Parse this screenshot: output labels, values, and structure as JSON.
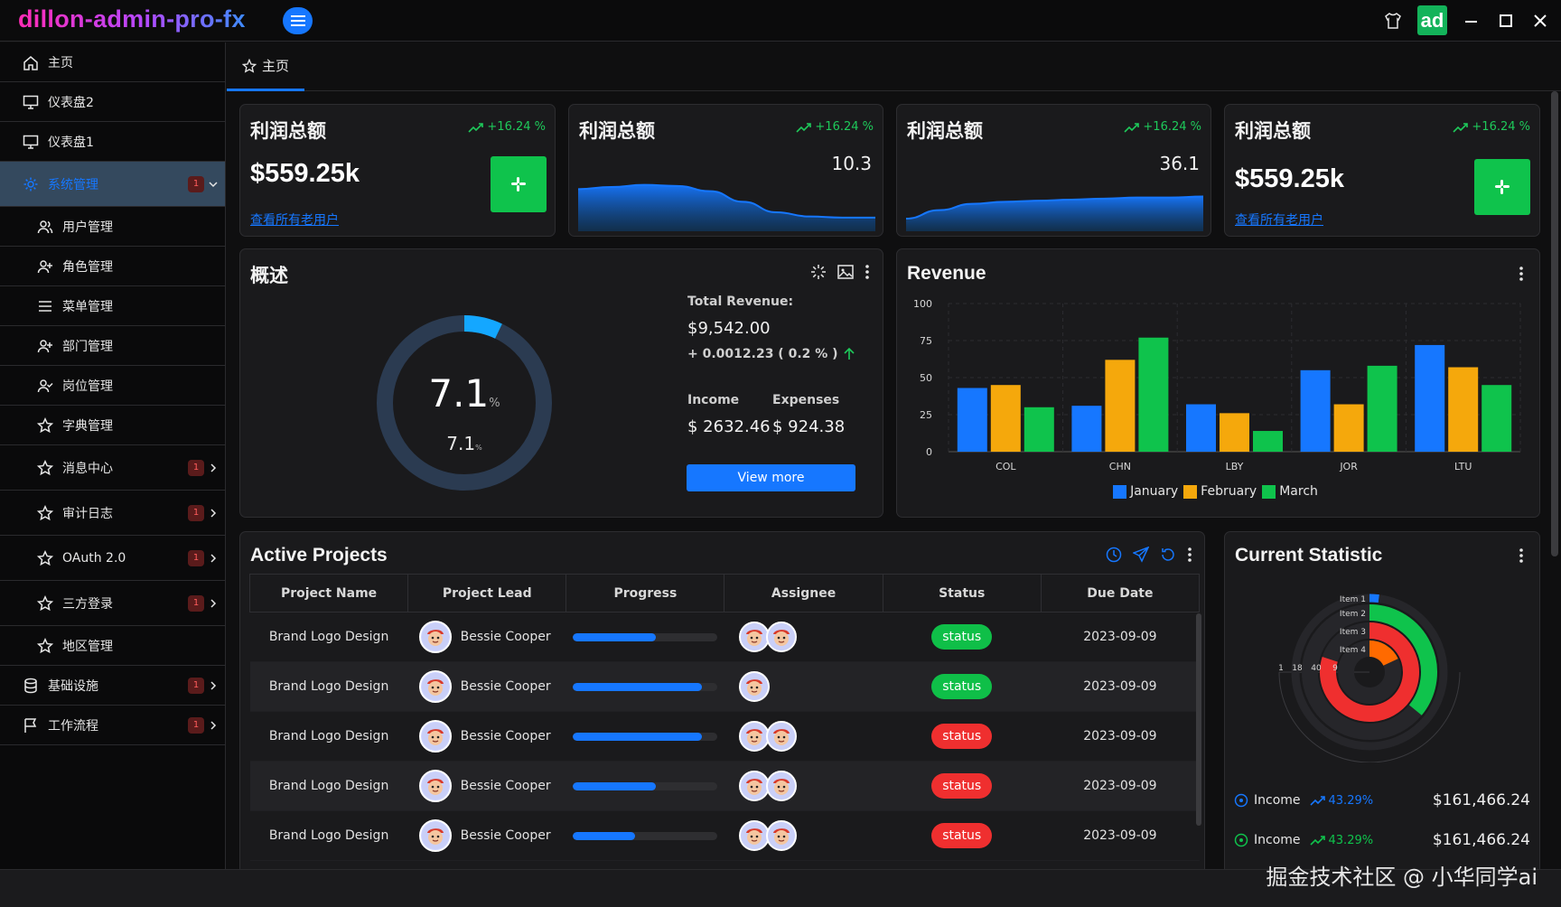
{
  "app": {
    "title": "dillon-admin-pro-fx",
    "user_initials": "ad"
  },
  "colors": {
    "accent": "#1677ff",
    "green": "#0fc34c",
    "red": "#ef2f2f",
    "bg": "#0f0f10",
    "card": "#1a1a1c"
  },
  "sidebar": {
    "items": [
      {
        "label": "主页",
        "icon": "home-icon"
      },
      {
        "label": "仪表盘2",
        "icon": "monitor-icon"
      },
      {
        "label": "仪表盘1",
        "icon": "monitor-icon"
      },
      {
        "label": "系统管理",
        "icon": "gear-icon",
        "badge": "1",
        "active": true
      },
      {
        "label": "用户管理",
        "icon": "users-icon"
      },
      {
        "label": "角色管理",
        "icon": "user-plus-icon"
      },
      {
        "label": "菜单管理",
        "icon": "menu-icon"
      },
      {
        "label": "部门管理",
        "icon": "user-plus-icon"
      },
      {
        "label": "岗位管理",
        "icon": "user-check-icon"
      },
      {
        "label": "字典管理",
        "icon": "star-icon"
      },
      {
        "label": "消息中心",
        "icon": "star-icon",
        "badge": "1"
      },
      {
        "label": "审计日志",
        "icon": "star-icon",
        "badge": "1"
      },
      {
        "label": "OAuth 2.0",
        "icon": "star-icon",
        "badge": "1"
      },
      {
        "label": "三方登录",
        "icon": "star-icon",
        "badge": "1"
      },
      {
        "label": "地区管理",
        "icon": "star-icon"
      },
      {
        "label": "基础设施",
        "icon": "database-icon",
        "badge": "1"
      },
      {
        "label": "工作流程",
        "icon": "flag-icon",
        "badge": "1"
      }
    ]
  },
  "tabs": [
    {
      "label": "主页"
    }
  ],
  "kpis": {
    "card1": {
      "title": "利润总额",
      "trend": "+16.24 %",
      "value": "$559.25k",
      "link": "查看所有老用户"
    },
    "card2": {
      "title": "利润总额",
      "trend": "+16.24 %",
      "value": "10.3"
    },
    "card3": {
      "title": "利润总额",
      "trend": "+16.24 %",
      "value": "36.1"
    },
    "card4": {
      "title": "利润总额",
      "trend": "+16.24 %",
      "value": "$559.25k",
      "link": "查看所有老用户"
    }
  },
  "overview": {
    "title": "概述",
    "percent_main": "7.1",
    "percent_sub": "7.1",
    "percent_unit": "%",
    "progress": 0.071,
    "total_revenue_label": "Total Revenue:",
    "total_revenue": "$9,542.00",
    "delta": "+ 0.0012.23 ( 0.2 % )",
    "income_label": "Income",
    "expenses_label": "Expenses",
    "income": "$ 2632.46",
    "expenses": "$ 924.38",
    "button": "View more"
  },
  "chart_data": [
    {
      "type": "bar",
      "title": "Revenue",
      "categories": [
        "COL",
        "CHN",
        "LBY",
        "JOR",
        "LTU"
      ],
      "series": [
        {
          "name": "January",
          "values": [
            43,
            31,
            32,
            55,
            72
          ],
          "color": "#1677ff"
        },
        {
          "name": "February",
          "values": [
            45,
            62,
            26,
            32,
            57
          ],
          "color": "#f5a80c"
        },
        {
          "name": "March",
          "values": [
            30,
            77,
            14,
            58,
            45
          ],
          "color": "#0fc34c"
        }
      ],
      "ylim": [
        0,
        100
      ],
      "yticks": [
        0,
        25,
        50,
        75,
        100
      ],
      "legend": "bottom",
      "grid": true
    },
    {
      "type": "area",
      "values": [
        40,
        42,
        44,
        43,
        38,
        28,
        18,
        14,
        13,
        13
      ],
      "ylim": [
        0,
        60
      ]
    },
    {
      "type": "area",
      "values": [
        12,
        20,
        26,
        28,
        29,
        30,
        31,
        32,
        32,
        33
      ],
      "ylim": [
        0,
        60
      ]
    },
    {
      "type": "pie",
      "title": "Current Statistic",
      "categories": [
        "Item 1",
        "Item 2",
        "Item 3",
        "Item 4"
      ],
      "values": [
        1,
        18,
        40,
        9
      ],
      "colors": [
        "#1677ff",
        "#0fc34c",
        "#ef2f2f",
        "#ff6a00"
      ],
      "axis_ticks": [
        "1",
        "18",
        "40",
        "9"
      ]
    }
  ],
  "revenue": {
    "title": "Revenue"
  },
  "projects": {
    "title": "Active Projects",
    "columns": [
      "Project Name",
      "Project Lead",
      "Progress",
      "Assignee",
      "Status",
      "Due Date"
    ],
    "rows": [
      {
        "name": "Brand Logo Design",
        "lead": "Bessie Cooper",
        "progress": 0.57,
        "assignees": 2,
        "status": "status",
        "status_type": "ok",
        "due": "2023-09-09"
      },
      {
        "name": "Brand Logo Design",
        "lead": "Bessie Cooper",
        "progress": 0.89,
        "assignees": 1,
        "status": "status",
        "status_type": "ok",
        "due": "2023-09-09"
      },
      {
        "name": "Brand Logo Design",
        "lead": "Bessie Cooper",
        "progress": 0.89,
        "assignees": 2,
        "status": "status",
        "status_type": "bad",
        "due": "2023-09-09"
      },
      {
        "name": "Brand Logo Design",
        "lead": "Bessie Cooper",
        "progress": 0.57,
        "assignees": 2,
        "status": "status",
        "status_type": "bad",
        "due": "2023-09-09"
      },
      {
        "name": "Brand Logo Design",
        "lead": "Bessie Cooper",
        "progress": 0.43,
        "assignees": 2,
        "status": "status",
        "status_type": "bad",
        "due": "2023-09-09"
      }
    ]
  },
  "statistic": {
    "title": "Current Statistic",
    "rows": [
      {
        "label": "Income",
        "trend": "43.29%",
        "amount": "$161,466.24",
        "color": "#1677ff"
      },
      {
        "label": "Income",
        "trend": "43.29%",
        "amount": "$161,466.24",
        "color": "#0fc34c"
      }
    ]
  },
  "watermark": "掘金技术社区 @ 小华同学ai"
}
